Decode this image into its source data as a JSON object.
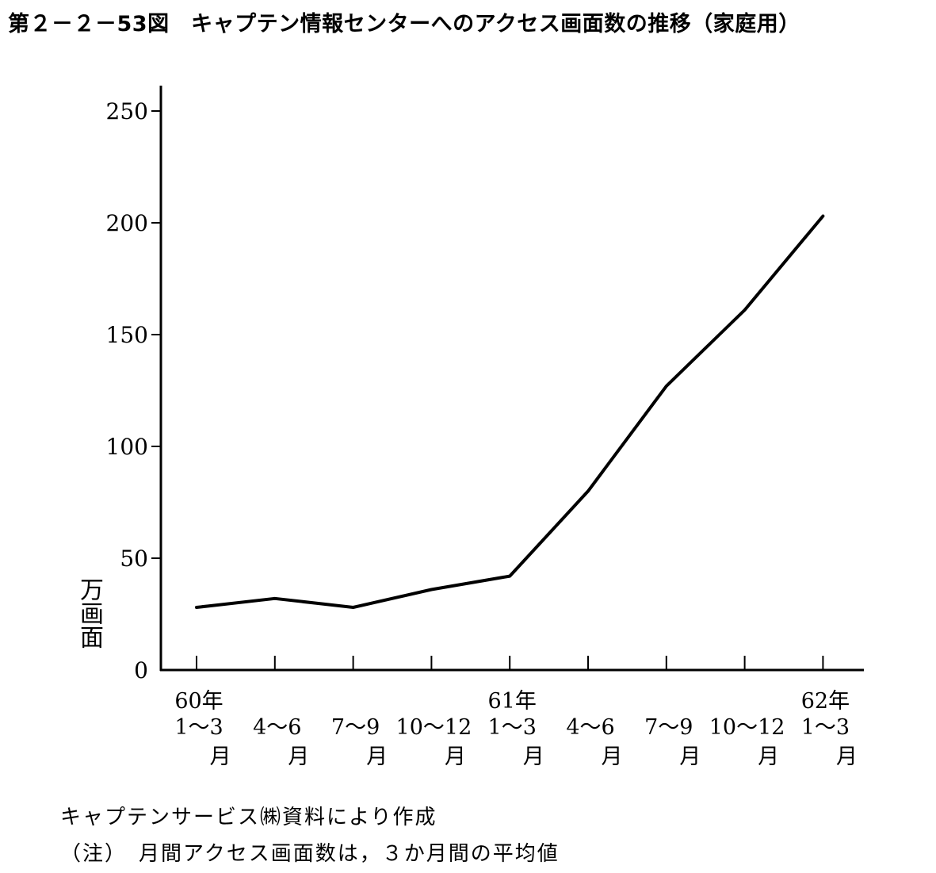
{
  "figure": {
    "title": "第２－２－53図　キャプテン情報センターへのアクセス画面数の推移（家庭用）",
    "source": "キャプテンサービス㈱資料により作成",
    "note": "（注）　月間アクセス画面数は，３か月間の平均値"
  },
  "chart_data": {
    "type": "line",
    "ylabel": "万画面",
    "xlabel": "",
    "ylim": [
      0,
      260
    ],
    "yticks": [
      0,
      50,
      100,
      150,
      200,
      250
    ],
    "grid": false,
    "legend": "none",
    "line_color": "#000000",
    "categories": [
      {
        "year": "60年",
        "period": "1～3",
        "unit": "月"
      },
      {
        "year": "",
        "period": "4～6",
        "unit": "月"
      },
      {
        "year": "",
        "period": "7～9",
        "unit": "月"
      },
      {
        "year": "",
        "period": "10～12",
        "unit": "月"
      },
      {
        "year": "61年",
        "period": "1～3",
        "unit": "月"
      },
      {
        "year": "",
        "period": "4～6",
        "unit": "月"
      },
      {
        "year": "",
        "period": "7～9",
        "unit": "月"
      },
      {
        "year": "",
        "period": "10～12",
        "unit": "月"
      },
      {
        "year": "62年",
        "period": "1～3",
        "unit": "月"
      }
    ],
    "series": [
      {
        "values": [
          28,
          32,
          28,
          36,
          42,
          80,
          127,
          161,
          203
        ]
      }
    ]
  }
}
